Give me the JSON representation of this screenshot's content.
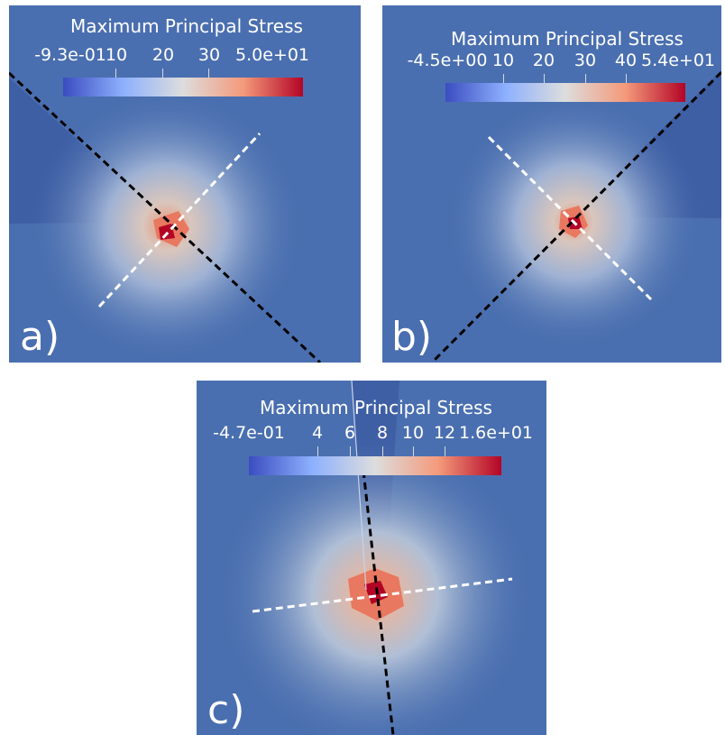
{
  "colors": {
    "background": "#4a6fb0",
    "colormap_low": "#3b4cc0",
    "colormap_mid": "#dddddd",
    "colormap_high": "#b40426",
    "dashed_black": "#000000",
    "dashed_white": "#ffffff"
  },
  "panels": [
    {
      "label": "a)",
      "colorbar": {
        "title": "Maximum Principal Stress",
        "min_label": "-9.3e-01",
        "max_label": "5.0e+01",
        "ticks": [
          "10",
          "20",
          "30"
        ]
      }
    },
    {
      "label": "b)",
      "colorbar": {
        "title": "Maximum Principal Stress",
        "min_label": "-4.5e+00",
        "max_label": "5.4e+01",
        "ticks": [
          "10",
          "20",
          "30",
          "40"
        ]
      }
    },
    {
      "label": "c)",
      "colorbar": {
        "title": "Maximum Principal Stress",
        "min_label": "-4.7e-01",
        "max_label": "1.6e+01",
        "ticks": [
          "4",
          "6",
          "8",
          "10",
          "12"
        ]
      }
    }
  ]
}
